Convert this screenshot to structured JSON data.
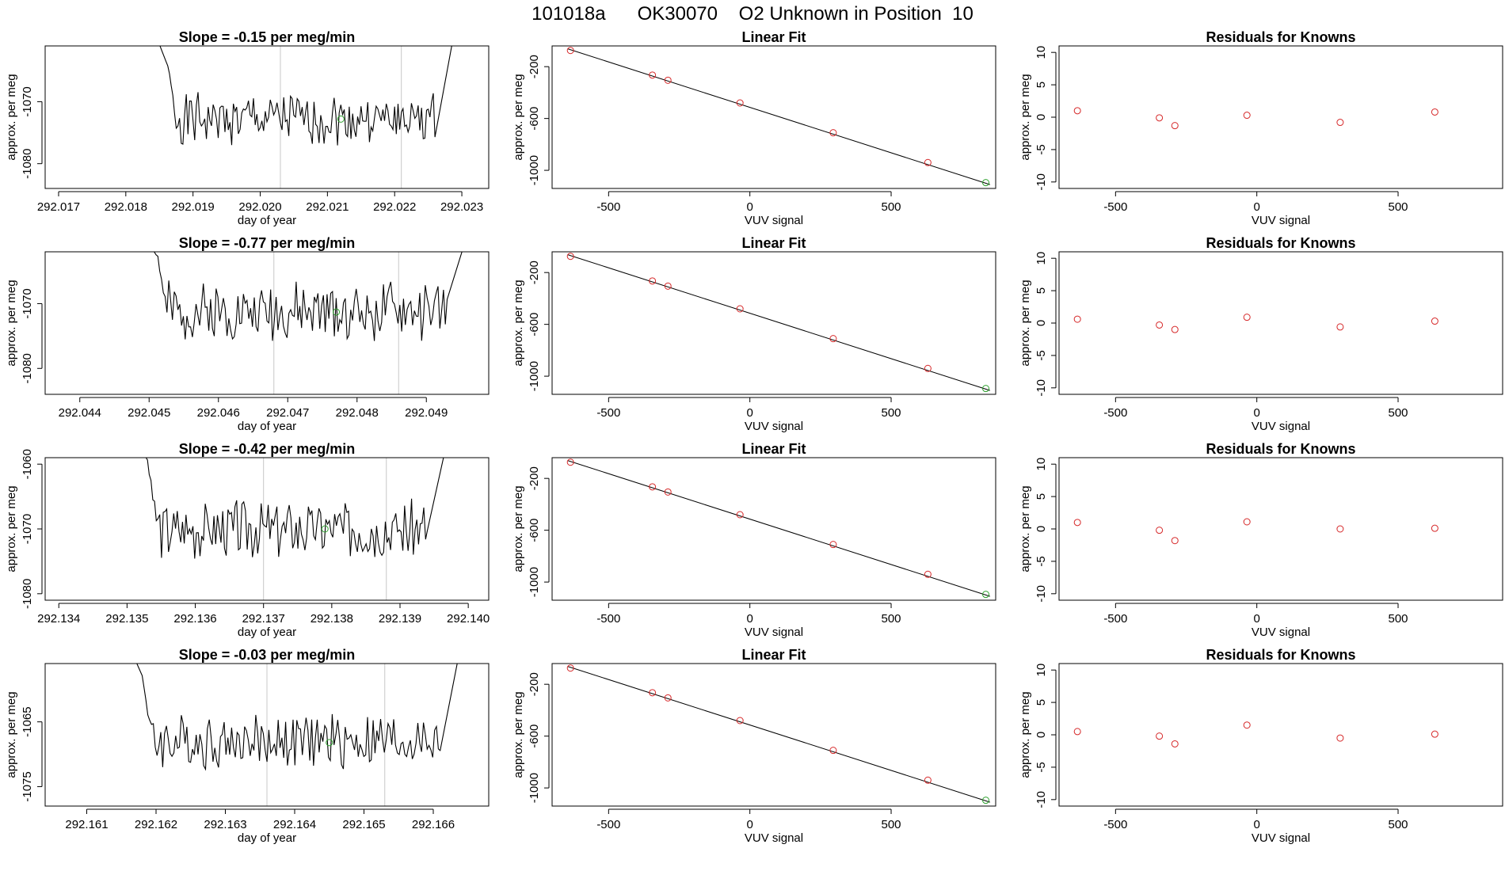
{
  "figure_title": "101018a      OK30070    O2 Unknown in Position  10",
  "colors": {
    "line": "#000000",
    "known_point": "#d62728",
    "unknown_point": "#2ca02c",
    "marker_line": "#c8c8c8",
    "frame": "#000000"
  },
  "chart_data": [
    {
      "type": "line",
      "row": 1,
      "panel": "timeseries",
      "title": "Slope =  -0.15  per meg/min",
      "xlabel": "day of year",
      "ylabel": "approx. per meg",
      "xlim": [
        292.0168,
        292.0234
      ],
      "ylim": [
        -1084,
        -1061
      ],
      "xticks": [
        292.017,
        292.018,
        292.019,
        292.02,
        292.021,
        292.022,
        292.023
      ],
      "xtick_labels": [
        "292.017",
        "292.018",
        "292.019",
        "292.020",
        "292.021",
        "292.022",
        "292.023"
      ],
      "yticks": [
        -1080,
        -1070
      ],
      "ytick_labels": [
        "-1080",
        "-1070"
      ],
      "vlines": [
        292.0203,
        292.0221
      ],
      "series": [
        {
          "name": "signal",
          "start": 292.0186,
          "end": 292.0226,
          "base": -1072.8,
          "amp": 2.2,
          "seed": 1,
          "rise_left": 292.0184,
          "rise_right": 292.0229
        }
      ],
      "unknown_point": {
        "x": 292.0212,
        "y": -1072.8
      }
    },
    {
      "type": "scatter",
      "row": 1,
      "panel": "linear_fit",
      "title": "Linear Fit",
      "xlabel": "VUV signal",
      "ylabel": "approx. per meg",
      "xlim": [
        -700,
        870
      ],
      "ylim": [
        -1140,
        -40
      ],
      "xticks": [
        -500,
        0,
        500
      ],
      "xtick_labels": [
        "-500",
        "0",
        "500"
      ],
      "yticks": [
        -1000,
        -600,
        -200
      ],
      "ytick_labels": [
        "-1000",
        "-600",
        "-200"
      ],
      "known": {
        "x": [
          -635,
          -345,
          -290,
          -35,
          295,
          630
        ],
        "y": [
          -75,
          -265,
          -305,
          -480,
          -710,
          -940
        ]
      },
      "unknown": {
        "x": 835,
        "y": -1095
      },
      "fit": {
        "x": [
          -645,
          850
        ],
        "y": [
          -62,
          -1110
        ]
      }
    },
    {
      "type": "scatter",
      "row": 1,
      "panel": "residuals",
      "title": "Residuals for Knowns",
      "xlabel": "VUV signal",
      "ylabel": "approx. per meg",
      "xlim": [
        -700,
        870
      ],
      "ylim": [
        -11,
        11
      ],
      "xticks": [
        -500,
        0,
        500
      ],
      "xtick_labels": [
        "-500",
        "0",
        "500"
      ],
      "yticks": [
        -10,
        -5,
        0,
        5,
        10
      ],
      "ytick_labels": [
        "-10",
        "-5",
        "0",
        "5",
        "10"
      ],
      "known": {
        "x": [
          -635,
          -345,
          -290,
          -35,
          295,
          630
        ],
        "y": [
          1.0,
          -0.1,
          -1.3,
          0.3,
          -0.8,
          0.8
        ]
      }
    },
    {
      "type": "line",
      "row": 2,
      "panel": "timeseries",
      "title": "Slope =  -0.77  per meg/min",
      "xlabel": "day of year",
      "ylabel": "approx. per meg",
      "xlim": [
        292.0435,
        292.0499
      ],
      "ylim": [
        -1084,
        -1062
      ],
      "xticks": [
        292.044,
        292.045,
        292.046,
        292.047,
        292.048,
        292.049
      ],
      "xtick_labels": [
        "292.044",
        "292.045",
        "292.046",
        "292.047",
        "292.048",
        "292.049"
      ],
      "yticks": [
        -1080,
        -1070
      ],
      "ytick_labels": [
        "-1080",
        "-1070"
      ],
      "vlines": [
        292.0468,
        292.0486
      ],
      "series": [
        {
          "name": "signal",
          "start": 292.0451,
          "end": 292.0493,
          "base": -1071.2,
          "amp": 2.4,
          "seed": 2,
          "rise_left": 292.0449,
          "rise_right": 292.0496
        }
      ],
      "unknown_point": {
        "x": 292.0477,
        "y": -1071.3
      }
    },
    {
      "type": "scatter",
      "row": 2,
      "panel": "linear_fit",
      "title": "Linear Fit",
      "xlabel": "VUV signal",
      "ylabel": "approx. per meg",
      "xlim": [
        -700,
        870
      ],
      "ylim": [
        -1140,
        -40
      ],
      "xticks": [
        -500,
        0,
        500
      ],
      "xtick_labels": [
        "-500",
        "0",
        "500"
      ],
      "yticks": [
        -1000,
        -600,
        -200
      ],
      "ytick_labels": [
        "-1000",
        "-600",
        "-200"
      ],
      "known": {
        "x": [
          -635,
          -345,
          -290,
          -35,
          295,
          630
        ],
        "y": [
          -75,
          -265,
          -305,
          -480,
          -710,
          -940
        ]
      },
      "unknown": {
        "x": 835,
        "y": -1095
      },
      "fit": {
        "x": [
          -645,
          850
        ],
        "y": [
          -62,
          -1110
        ]
      }
    },
    {
      "type": "scatter",
      "row": 2,
      "panel": "residuals",
      "title": "Residuals for Knowns",
      "xlabel": "VUV signal",
      "ylabel": "approx. per meg",
      "xlim": [
        -700,
        870
      ],
      "ylim": [
        -11,
        11
      ],
      "xticks": [
        -500,
        0,
        500
      ],
      "xtick_labels": [
        "-500",
        "0",
        "500"
      ],
      "yticks": [
        -10,
        -5,
        0,
        5,
        10
      ],
      "ytick_labels": [
        "-10",
        "-5",
        "0",
        "5",
        "10"
      ],
      "known": {
        "x": [
          -635,
          -345,
          -290,
          -35,
          295,
          630
        ],
        "y": [
          0.6,
          -0.3,
          -1.0,
          0.9,
          -0.6,
          0.3
        ]
      }
    },
    {
      "type": "line",
      "row": 3,
      "panel": "timeseries",
      "title": "Slope =  -0.42  per meg/min",
      "xlabel": "day of year",
      "ylabel": "approx. per meg",
      "xlim": [
        292.1338,
        292.1403
      ],
      "ylim": [
        -1081,
        -1059
      ],
      "xticks": [
        292.134,
        292.135,
        292.136,
        292.137,
        292.138,
        292.139,
        292.14
      ],
      "xtick_labels": [
        "292.134",
        "292.135",
        "292.136",
        "292.137",
        "292.138",
        "292.139",
        "292.140"
      ],
      "yticks": [
        -1080,
        -1070,
        -1060
      ],
      "ytick_labels": [
        "-1080",
        "-1070",
        "-1060"
      ],
      "vlines": [
        292.137,
        292.1388
      ],
      "series": [
        {
          "name": "signal",
          "start": 292.1353,
          "end": 292.1394,
          "base": -1070.0,
          "amp": 2.4,
          "seed": 3,
          "rise_left": 292.1351,
          "rise_right": 292.1397
        }
      ],
      "unknown_point": {
        "x": 292.1379,
        "y": -1070.0
      }
    },
    {
      "type": "scatter",
      "row": 3,
      "panel": "linear_fit",
      "title": "Linear Fit",
      "xlabel": "VUV signal",
      "ylabel": "approx. per meg",
      "xlim": [
        -700,
        870
      ],
      "ylim": [
        -1140,
        -40
      ],
      "xticks": [
        -500,
        0,
        500
      ],
      "xtick_labels": [
        "-500",
        "0",
        "500"
      ],
      "yticks": [
        -1000,
        -600,
        -200
      ],
      "ytick_labels": [
        "-1000",
        "-600",
        "-200"
      ],
      "known": {
        "x": [
          -635,
          -345,
          -290,
          -35,
          295,
          630
        ],
        "y": [
          -75,
          -265,
          -305,
          -480,
          -710,
          -940
        ]
      },
      "unknown": {
        "x": 835,
        "y": -1095
      },
      "fit": {
        "x": [
          -645,
          850
        ],
        "y": [
          -62,
          -1110
        ]
      }
    },
    {
      "type": "scatter",
      "row": 3,
      "panel": "residuals",
      "title": "Residuals for Knowns",
      "xlabel": "VUV signal",
      "ylabel": "approx. per meg",
      "xlim": [
        -700,
        870
      ],
      "ylim": [
        -11,
        11
      ],
      "xticks": [
        -500,
        0,
        500
      ],
      "xtick_labels": [
        "-500",
        "0",
        "500"
      ],
      "yticks": [
        -10,
        -5,
        0,
        5,
        10
      ],
      "ytick_labels": [
        "-10",
        "-5",
        "0",
        "5",
        "10"
      ],
      "known": {
        "x": [
          -635,
          -345,
          -290,
          -35,
          295,
          630
        ],
        "y": [
          1.0,
          -0.2,
          -1.8,
          1.1,
          0.0,
          0.1
        ]
      }
    },
    {
      "type": "line",
      "row": 4,
      "panel": "timeseries",
      "title": "Slope =  -0.03  per meg/min",
      "xlabel": "day of year",
      "ylabel": "approx. per meg",
      "xlim": [
        292.1604,
        292.1668
      ],
      "ylim": [
        -1078,
        -1056
      ],
      "xticks": [
        292.161,
        292.162,
        292.163,
        292.164,
        292.165,
        292.166
      ],
      "xtick_labels": [
        "292.161",
        "292.162",
        "292.163",
        "292.164",
        "292.165",
        "292.166"
      ],
      "yticks": [
        -1075,
        -1065
      ],
      "ytick_labels": [
        "-1075",
        "-1065"
      ],
      "vlines": [
        292.1636,
        292.1653
      ],
      "series": [
        {
          "name": "signal",
          "start": 292.1618,
          "end": 292.1661,
          "base": -1068.0,
          "amp": 2.3,
          "seed": 4,
          "rise_left": 292.1616,
          "rise_right": 292.1664
        }
      ],
      "unknown_point": {
        "x": 292.1645,
        "y": -1068.2
      }
    },
    {
      "type": "scatter",
      "row": 4,
      "panel": "linear_fit",
      "title": "Linear Fit",
      "xlabel": "VUV signal",
      "ylabel": "approx. per meg",
      "xlim": [
        -700,
        870
      ],
      "ylim": [
        -1140,
        -40
      ],
      "xticks": [
        -500,
        0,
        500
      ],
      "xtick_labels": [
        "-500",
        "0",
        "500"
      ],
      "yticks": [
        -1000,
        -600,
        -200
      ],
      "ytick_labels": [
        "-1000",
        "-600",
        "-200"
      ],
      "known": {
        "x": [
          -635,
          -345,
          -290,
          -35,
          295,
          630
        ],
        "y": [
          -75,
          -265,
          -305,
          -480,
          -710,
          -940
        ]
      },
      "unknown": {
        "x": 835,
        "y": -1095
      },
      "fit": {
        "x": [
          -645,
          850
        ],
        "y": [
          -62,
          -1110
        ]
      }
    },
    {
      "type": "scatter",
      "row": 4,
      "panel": "residuals",
      "title": "Residuals for Knowns",
      "xlabel": "VUV signal",
      "ylabel": "approx. per meg",
      "xlim": [
        -700,
        870
      ],
      "ylim": [
        -11,
        11
      ],
      "xticks": [
        -500,
        0,
        500
      ],
      "xtick_labels": [
        "-500",
        "0",
        "500"
      ],
      "yticks": [
        -10,
        -5,
        0,
        5,
        10
      ],
      "ytick_labels": [
        "-10",
        "-5",
        "0",
        "5",
        "10"
      ],
      "known": {
        "x": [
          -635,
          -345,
          -290,
          -35,
          295,
          630
        ],
        "y": [
          0.5,
          -0.2,
          -1.4,
          1.5,
          -0.5,
          0.1
        ]
      }
    }
  ]
}
